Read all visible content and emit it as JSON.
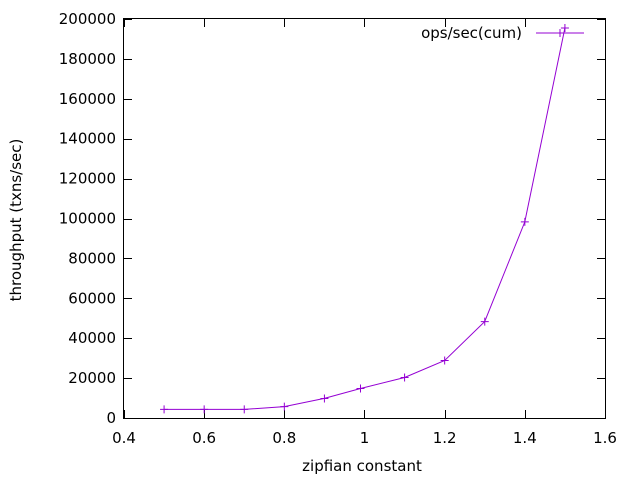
{
  "chart_data": {
    "type": "line",
    "title": "",
    "xlabel": "zipfian constant",
    "ylabel": "throughput (txns/sec)",
    "xlim": [
      0.4,
      1.6
    ],
    "ylim": [
      0,
      200000
    ],
    "x_ticks": [
      0.4,
      0.6,
      0.8,
      1,
      1.2,
      1.4,
      1.6
    ],
    "x_tick_labels": [
      "0.4",
      "0.6",
      "0.8",
      "1",
      "1.2",
      "1.4",
      "1.6"
    ],
    "y_ticks": [
      0,
      20000,
      40000,
      60000,
      80000,
      100000,
      120000,
      140000,
      160000,
      180000,
      200000
    ],
    "y_tick_labels": [
      "0",
      "20000",
      "40000",
      "60000",
      "80000",
      "100000",
      "120000",
      "140000",
      "160000",
      "180000",
      "200000"
    ],
    "grid": false,
    "legend_position": "top-right",
    "marker": "plus",
    "series": [
      {
        "name": "ops/sec(cum)",
        "color": "#9400d3",
        "x": [
          0.5,
          0.6,
          0.7,
          0.8,
          0.9,
          0.99,
          1.1,
          1.2,
          1.3,
          1.4,
          1.5
        ],
        "y": [
          4300,
          4300,
          4300,
          5700,
          9800,
          14800,
          20300,
          28800,
          48300,
          98300,
          195500
        ]
      }
    ]
  }
}
